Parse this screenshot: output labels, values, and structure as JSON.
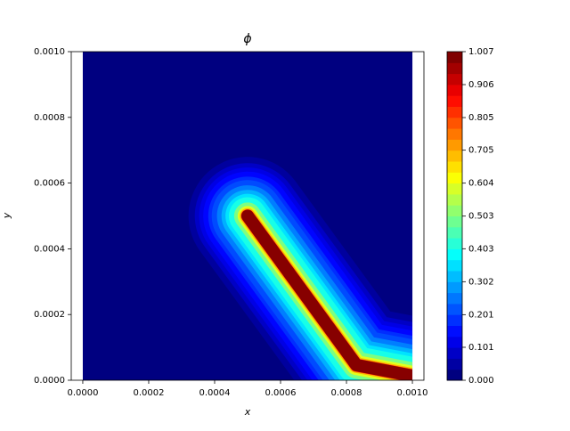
{
  "chart_data": {
    "type": "contour",
    "title": "ϕ",
    "xlabel": "x",
    "ylabel": "y",
    "xlim": [
      -3.5e-05,
      0.001035
    ],
    "ylim": [
      0,
      0.001
    ],
    "xticks": [
      {
        "value": 0,
        "label": "0.0000"
      },
      {
        "value": 0.0002,
        "label": "0.0002"
      },
      {
        "value": 0.0004,
        "label": "0.0004"
      },
      {
        "value": 0.0006,
        "label": "0.0006"
      },
      {
        "value": 0.0008,
        "label": "0.0008"
      },
      {
        "value": 0.001,
        "label": "0.0010"
      }
    ],
    "yticks": [
      {
        "value": 0,
        "label": "0.0000"
      },
      {
        "value": 0.0002,
        "label": "0.0002"
      },
      {
        "value": 0.0004,
        "label": "0.0004"
      },
      {
        "value": 0.0006,
        "label": "0.0006"
      },
      {
        "value": 0.0008,
        "label": "0.0008"
      },
      {
        "value": 0.001,
        "label": "0.0010"
      }
    ],
    "colormap": "jet",
    "clim": [
      0,
      1.007
    ],
    "n_levels": 30,
    "cbar_ticks": [
      {
        "value": 0,
        "label": "0.000"
      },
      {
        "value": 0.101,
        "label": "0.101"
      },
      {
        "value": 0.201,
        "label": "0.201"
      },
      {
        "value": 0.302,
        "label": "0.302"
      },
      {
        "value": 0.403,
        "label": "0.403"
      },
      {
        "value": 0.503,
        "label": "0.503"
      },
      {
        "value": 0.604,
        "label": "0.604"
      },
      {
        "value": 0.705,
        "label": "0.705"
      },
      {
        "value": 0.805,
        "label": "0.805"
      },
      {
        "value": 0.906,
        "label": "0.906"
      },
      {
        "value": 1.007,
        "label": "1.007"
      }
    ],
    "field": {
      "xrange": [
        0,
        0.001
      ],
      "yrange": [
        0,
        0.001
      ],
      "centerline_x": [
        0.0005,
        0.00083,
        0.001
      ],
      "centerline_y": [
        0.0005,
        4.6e-05,
        1.35e-05
      ],
      "levels": [
        0.03,
        0.07,
        0.1,
        0.13,
        0.17,
        0.2,
        0.25,
        0.3,
        0.35,
        0.4,
        0.5,
        0.6,
        0.7,
        0.8,
        0.9,
        1.0
      ]
    }
  }
}
